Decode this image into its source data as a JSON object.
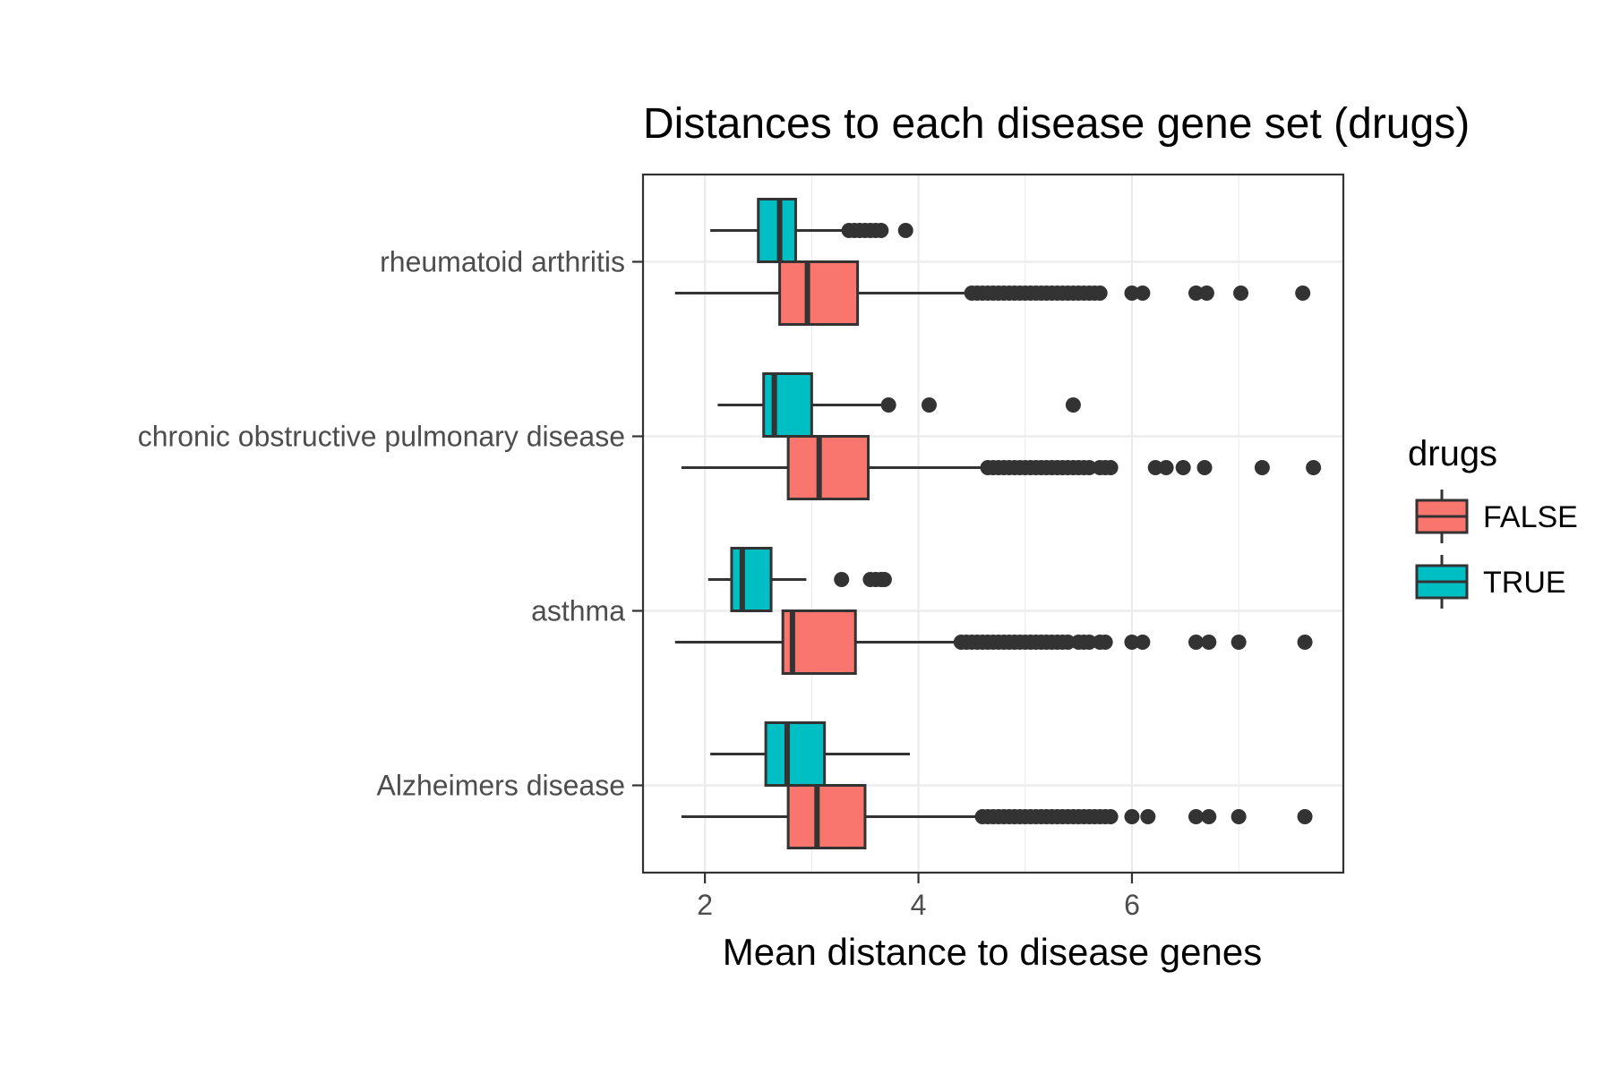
{
  "chart_data": {
    "type": "boxplot",
    "orientation": "horizontal",
    "title": "Distances to each disease gene set (drugs)",
    "xlabel": "Mean distance to disease genes",
    "ylabel": "",
    "xlim": [
      1.42,
      7.98
    ],
    "xticks": [
      2,
      4,
      6
    ],
    "xtick_labels": [
      "2",
      "4",
      "6"
    ],
    "grid": true,
    "legend": {
      "title": "drugs",
      "position": "right"
    },
    "categories": [
      "rheumatoid arthritis",
      "chronic obstructive pulmonary disease",
      "asthma",
      "Alzheimers disease"
    ],
    "series": [
      {
        "name": "FALSE",
        "color": "#F8766D",
        "boxes": [
          {
            "category": "rheumatoid arthritis",
            "whisker_low": 1.72,
            "q1": 2.7,
            "median": 2.96,
            "q3": 3.43,
            "whisker_high": 4.5,
            "outliers": [
              4.5,
              4.55,
              4.6,
              4.65,
              4.7,
              4.75,
              4.8,
              4.85,
              4.9,
              4.95,
              5.0,
              5.05,
              5.1,
              5.15,
              5.2,
              5.25,
              5.3,
              5.35,
              5.4,
              5.45,
              5.5,
              5.55,
              5.6,
              5.65,
              5.7,
              6.0,
              6.1,
              6.6,
              6.7,
              7.02,
              7.6
            ]
          },
          {
            "category": "chronic obstructive pulmonary disease",
            "whisker_low": 1.78,
            "q1": 2.78,
            "median": 3.07,
            "q3": 3.53,
            "whisker_high": 4.65,
            "outliers": [
              4.65,
              4.7,
              4.75,
              4.8,
              4.85,
              4.9,
              4.95,
              5.0,
              5.05,
              5.1,
              5.15,
              5.2,
              5.25,
              5.3,
              5.35,
              5.4,
              5.45,
              5.5,
              5.55,
              5.6,
              5.7,
              5.75,
              5.8,
              6.22,
              6.32,
              6.48,
              6.68,
              7.22,
              7.7
            ]
          },
          {
            "category": "asthma",
            "whisker_low": 1.72,
            "q1": 2.73,
            "median": 2.82,
            "q3": 3.41,
            "whisker_high": 4.4,
            "outliers": [
              4.4,
              4.45,
              4.5,
              4.55,
              4.6,
              4.65,
              4.7,
              4.75,
              4.8,
              4.85,
              4.9,
              4.95,
              5.0,
              5.05,
              5.1,
              5.15,
              5.2,
              5.25,
              5.3,
              5.35,
              5.4,
              5.5,
              5.55,
              5.6,
              5.7,
              5.75,
              6.0,
              6.1,
              6.6,
              6.72,
              7.0,
              7.62
            ]
          },
          {
            "category": "Alzheimers disease",
            "whisker_low": 1.78,
            "q1": 2.78,
            "median": 3.05,
            "q3": 3.5,
            "whisker_high": 4.6,
            "outliers": [
              4.6,
              4.65,
              4.7,
              4.75,
              4.8,
              4.85,
              4.9,
              4.95,
              5.0,
              5.05,
              5.1,
              5.15,
              5.2,
              5.25,
              5.3,
              5.35,
              5.4,
              5.45,
              5.5,
              5.55,
              5.6,
              5.65,
              5.7,
              5.75,
              5.8,
              6.0,
              6.15,
              6.6,
              6.72,
              7.0,
              7.62
            ]
          }
        ]
      },
      {
        "name": "TRUE",
        "color": "#00BFC4",
        "boxes": [
          {
            "category": "rheumatoid arthritis",
            "whisker_low": 2.05,
            "q1": 2.5,
            "median": 2.7,
            "q3": 2.85,
            "whisker_high": 3.32,
            "outliers": [
              3.35,
              3.4,
              3.45,
              3.5,
              3.55,
              3.6,
              3.65,
              3.88
            ]
          },
          {
            "category": "chronic obstructive pulmonary disease",
            "whisker_low": 2.12,
            "q1": 2.55,
            "median": 2.65,
            "q3": 3.0,
            "whisker_high": 3.72,
            "outliers": [
              3.72,
              4.1,
              5.45
            ]
          },
          {
            "category": "asthma",
            "whisker_low": 2.03,
            "q1": 2.25,
            "median": 2.35,
            "q3": 2.62,
            "whisker_high": 2.95,
            "outliers": [
              3.28,
              3.55,
              3.6,
              3.65,
              3.68
            ]
          },
          {
            "category": "Alzheimers disease",
            "whisker_low": 2.05,
            "q1": 2.57,
            "median": 2.77,
            "q3": 3.12,
            "whisker_high": 3.92,
            "outliers": []
          }
        ]
      }
    ]
  }
}
